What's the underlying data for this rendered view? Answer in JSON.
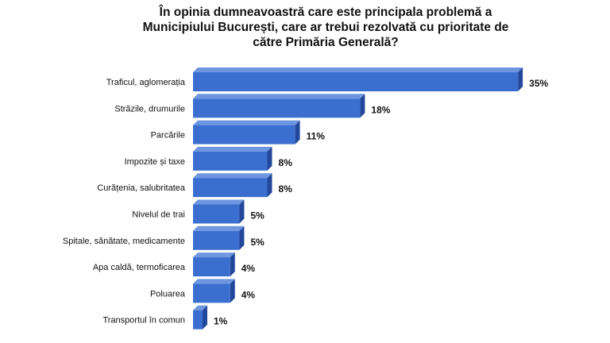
{
  "chart_data": {
    "type": "bar",
    "orientation": "horizontal",
    "title_lines": [
      "În opinia dumneavoastră care este principala problemă a",
      "Municipiului București, care ar trebui rezolvată cu prioritate de",
      "către Primăria Generală?"
    ],
    "categories": [
      "Traficul, aglomerația",
      "Străzile, drumurile",
      "Parcările",
      "Impozite și taxe",
      "Curățenia, salubritatea",
      "Nivelul de trai",
      "Spitale, sănătate, medicamente",
      "Apa caldă, termoficarea",
      "Poluarea",
      "Transportul în comun"
    ],
    "values": [
      35,
      18,
      11,
      8,
      8,
      5,
      5,
      4,
      4,
      1
    ],
    "value_labels": [
      "35%",
      "18%",
      "11%",
      "8%",
      "8%",
      "5%",
      "5%",
      "4%",
      "4%",
      "1%"
    ],
    "unit": "%",
    "grid": false,
    "legend": "none",
    "colors": {
      "bar_front": "#3a6fd0",
      "bar_top": "#6e96e0",
      "bar_side": "#23479a",
      "text": "#111111"
    }
  }
}
